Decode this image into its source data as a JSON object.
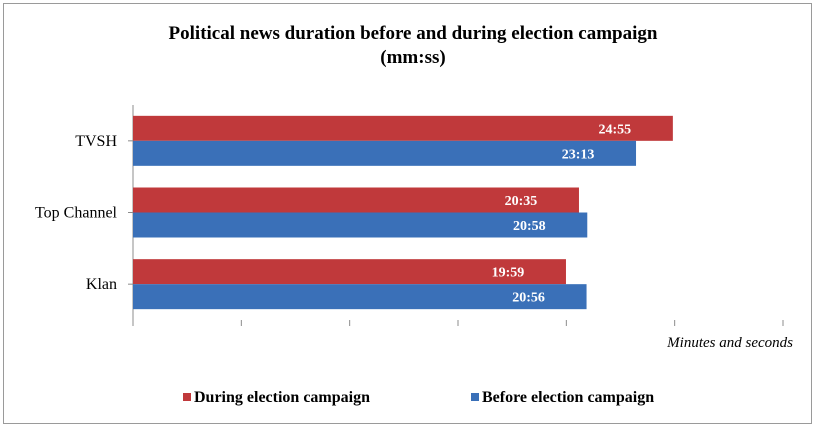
{
  "chart_data": {
    "type": "bar",
    "orientation": "horizontal",
    "title": "Political news duration before and during election campaign",
    "subtitle": "(mm:ss)",
    "xlabel": "Minutes and seconds",
    "ylabel": "",
    "categories": [
      "TVSH",
      "Top Channel",
      "Klan"
    ],
    "x_unit": "seconds",
    "xlim": [
      0,
      1800
    ],
    "x_tick_step": 300,
    "grid": false,
    "legend_position": "bottom",
    "series": [
      {
        "name": "During election campaign",
        "color": "#C0393B",
        "values": [
          1495,
          1235,
          1199
        ],
        "labels": [
          "24:55",
          "20:35",
          "19:59"
        ]
      },
      {
        "name": "Before election campaign",
        "color": "#3A70B8",
        "values": [
          1393,
          1258,
          1256
        ],
        "labels": [
          "23:13",
          "20:58",
          "20:56"
        ]
      }
    ]
  }
}
